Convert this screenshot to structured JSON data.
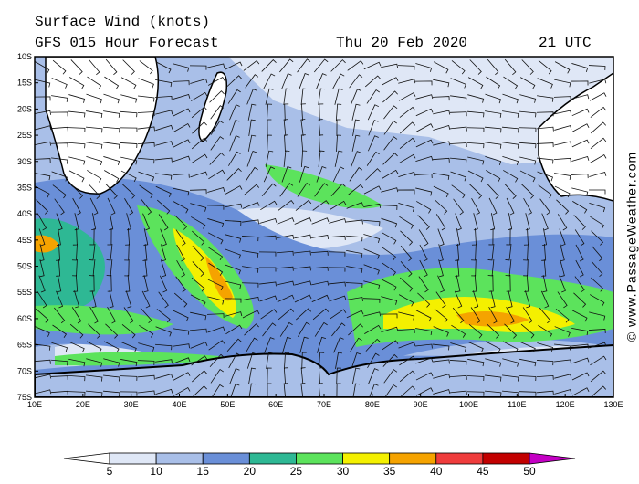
{
  "header": {
    "title": "Surface Wind (knots)",
    "model": "GFS 015 Hour Forecast",
    "date": "Thu 20 Feb 2020",
    "time": "21 UTC"
  },
  "map": {
    "lat_labels": [
      "10S",
      "15S",
      "20S",
      "25S",
      "30S",
      "35S",
      "40S",
      "45S",
      "50S",
      "55S",
      "60S",
      "65S",
      "70S",
      "75S"
    ],
    "lon_labels": [
      "10E",
      "20E",
      "30E",
      "40E",
      "50E",
      "60E",
      "70E",
      "80E",
      "90E",
      "100E",
      "110E",
      "120E",
      "130E"
    ]
  },
  "legend": {
    "ticks": [
      5,
      10,
      15,
      20,
      25,
      30,
      35,
      40,
      45,
      50
    ],
    "colors": [
      "#ffffff",
      "#dfe7f6",
      "#a9bfe8",
      "#6a8fd8",
      "#2eb894",
      "#5ce35c",
      "#f4f000",
      "#f5a300",
      "#ef3c3c",
      "#c20000",
      "#c400c4"
    ]
  },
  "credit": "© www.PassageWeather.com"
}
